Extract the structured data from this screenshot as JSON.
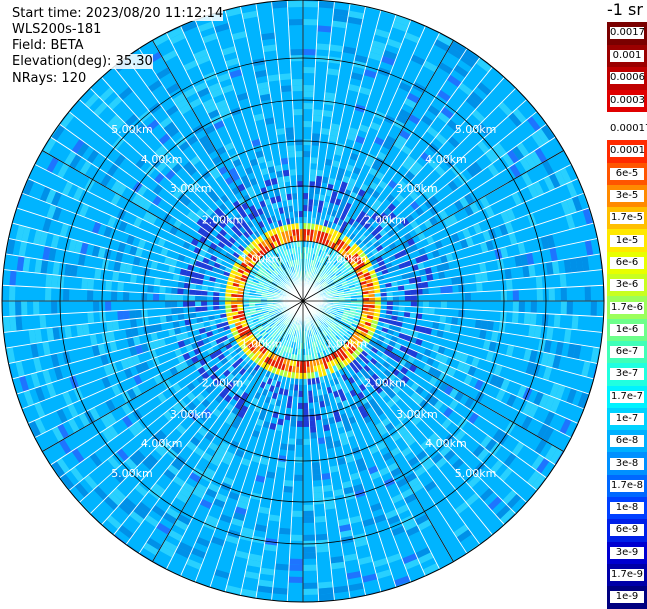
{
  "header": {
    "start_time": "Start time: 2023/08/20 11:12:14",
    "instrument": "WLS200s-181",
    "field": "Field: BETA",
    "elevation": "Elevation(deg): 35.30",
    "nrays": "NRays: 120"
  },
  "colorbar": {
    "title": "-1 sr",
    "top_levels": [
      {
        "label": "0.0017",
        "color": "#7a0000"
      },
      {
        "label": "0.001",
        "color": "#9b0000"
      },
      {
        "label": "0.0006",
        "color": "#bf0000"
      },
      {
        "label": "0.0003",
        "color": "#e00000"
      }
    ],
    "levels": [
      {
        "label": "0.00017",
        "color": "#ffffff"
      },
      {
        "label": "0.0001",
        "color": "#ff2a00"
      },
      {
        "label": "6e-5",
        "color": "#ff5500"
      },
      {
        "label": "3e-5",
        "color": "#ff8a00"
      },
      {
        "label": "1.7e-5",
        "color": "#ffbf00"
      },
      {
        "label": "1e-5",
        "color": "#ffe800"
      },
      {
        "label": "6e-6",
        "color": "#e8ff00"
      },
      {
        "label": "3e-6",
        "color": "#c8ff20"
      },
      {
        "label": "1.7e-6",
        "color": "#9bff5a"
      },
      {
        "label": "1e-6",
        "color": "#6dff8a"
      },
      {
        "label": "6e-7",
        "color": "#40ffb8"
      },
      {
        "label": "3e-7",
        "color": "#20ffe0"
      },
      {
        "label": "1.7e-7",
        "color": "#00f2ff"
      },
      {
        "label": "1e-7",
        "color": "#00d2ff"
      },
      {
        "label": "6e-8",
        "color": "#00b0ff"
      },
      {
        "label": "3e-8",
        "color": "#0090ff"
      },
      {
        "label": "1.7e-8",
        "color": "#0068ff"
      },
      {
        "label": "1e-8",
        "color": "#0040ff"
      },
      {
        "label": "6e-9",
        "color": "#0020e8"
      },
      {
        "label": "3e-9",
        "color": "#0000d0"
      },
      {
        "label": "1.7e-9",
        "color": "#0000a8"
      },
      {
        "label": "1e-9",
        "color": "#000080"
      }
    ]
  },
  "range_rings": {
    "labels": [
      "2.00km",
      "3.00km",
      "4.00km",
      "5.00km"
    ],
    "inner_label": "1.00km"
  },
  "colors": {
    "background_field": "#00b4ff",
    "speckle_light": "#28d0ff",
    "speckle_dark": "#0090e8",
    "speckle_deep": "#1f3cd8",
    "ring_red": "#e81e00",
    "ring_orange": "#ff9000",
    "ring_yellow": "#ffe800",
    "core_cyan": "#3ce8ff"
  }
}
